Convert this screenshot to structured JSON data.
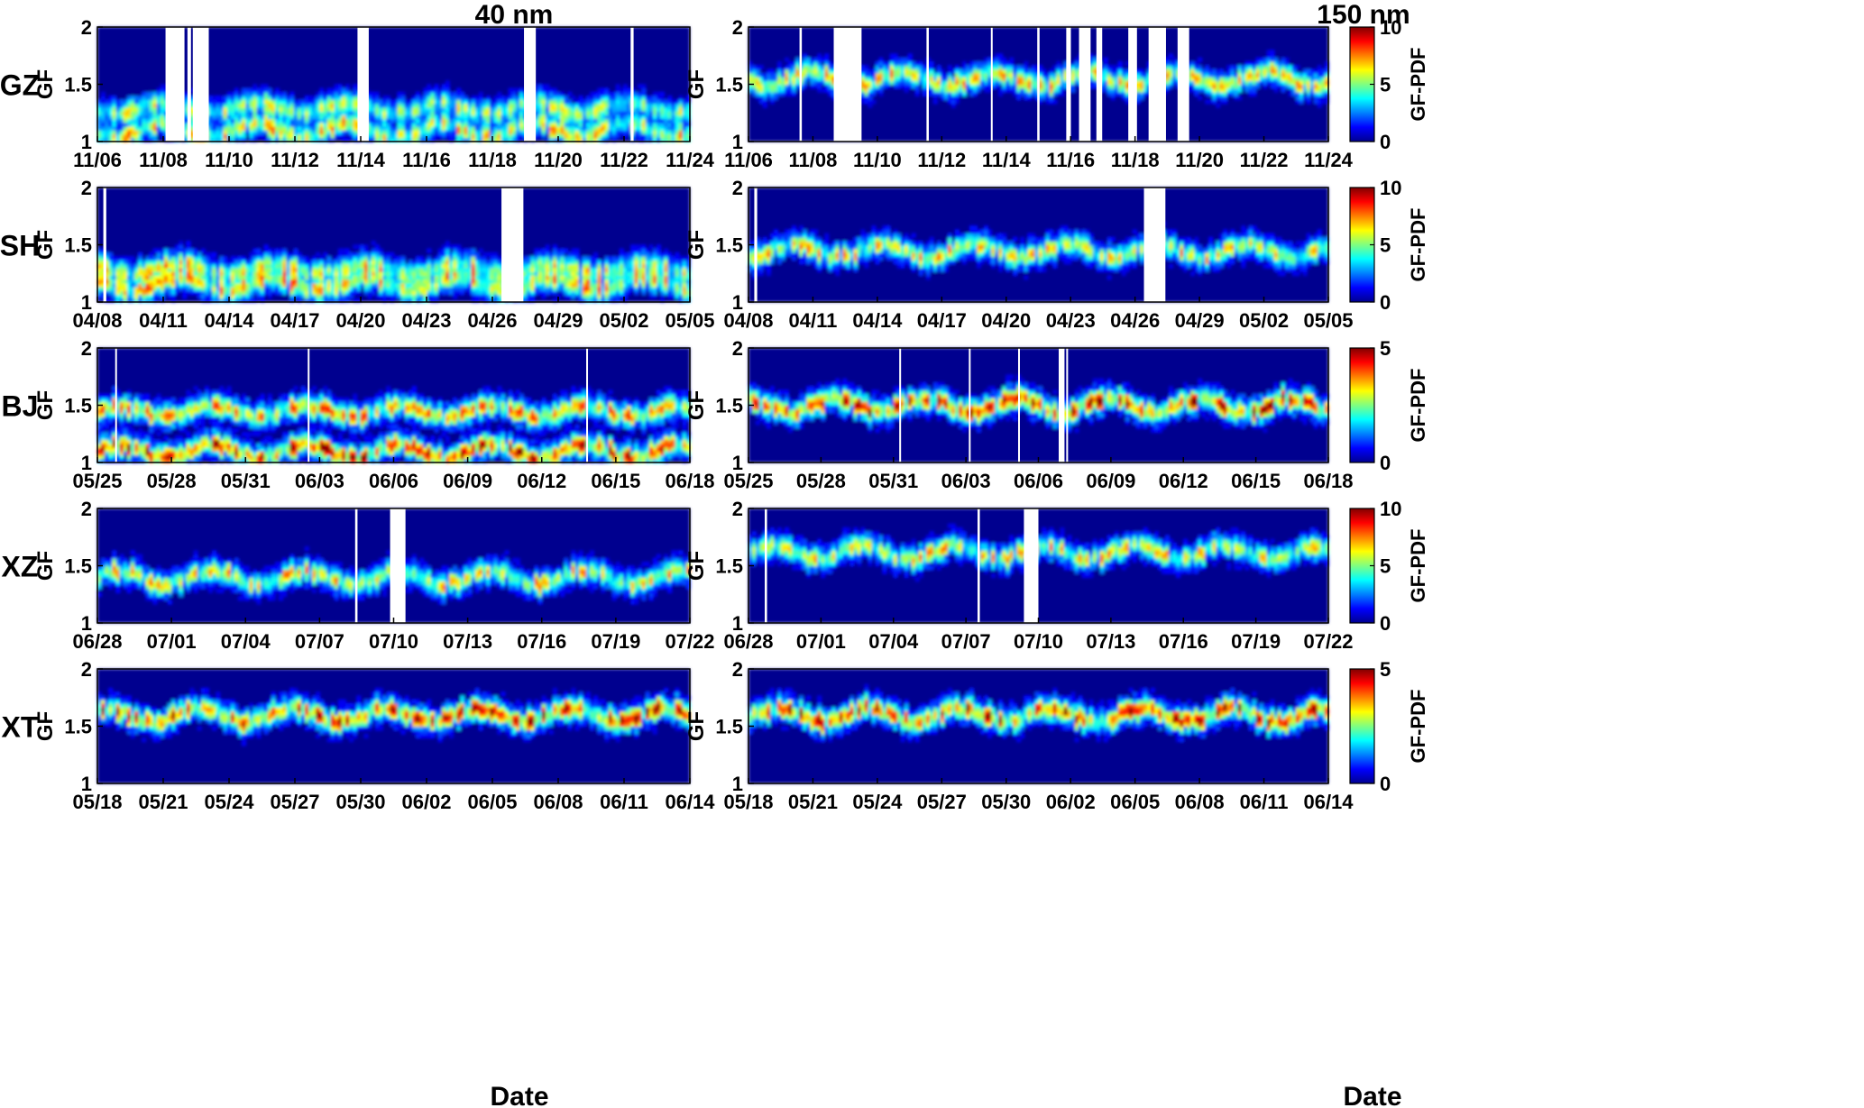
{
  "figure": {
    "column_titles": [
      "40 nm",
      "150 nm"
    ],
    "xlabel": "Date",
    "ylabel": "GF",
    "colorbar_label": "GF-PDF"
  },
  "chart_data": [
    {
      "type": "heatmap",
      "site": "GZ",
      "size": "40 nm",
      "ylabel": "GF",
      "ylim": [
        1,
        2
      ],
      "yticks": [
        "1",
        "1.5",
        "2"
      ],
      "xticks": [
        "11/06",
        "11/08",
        "11/10",
        "11/12",
        "11/14",
        "11/16",
        "11/18",
        "11/20",
        "11/22",
        "11/24"
      ],
      "colorbar": {
        "label": "GF-PDF",
        "range": [
          0,
          10
        ],
        "ticks": [
          "0",
          "5",
          "10"
        ]
      },
      "modes": [
        1.1,
        1.3
      ],
      "gaps": [
        [
          0.115,
          0.143
        ],
        [
          0.14,
          0.147
        ],
        [
          0.152,
          0.158
        ],
        [
          0.161,
          0.188
        ],
        [
          0.439,
          0.458
        ],
        [
          0.72,
          0.74
        ],
        [
          0.9,
          0.905
        ]
      ]
    },
    {
      "type": "heatmap",
      "site": "GZ",
      "size": "150 nm",
      "ylabel": "GF",
      "ylim": [
        1,
        2
      ],
      "yticks": [
        "1",
        "1.5",
        "2"
      ],
      "xticks": [
        "11/06",
        "11/08",
        "11/10",
        "11/12",
        "11/14",
        "11/16",
        "11/18",
        "11/20",
        "11/22",
        "11/24"
      ],
      "colorbar": {
        "label": "GF-PDF",
        "range": [
          0,
          10
        ],
        "ticks": [
          "0",
          "5",
          "10"
        ]
      },
      "modes": [
        1.55
      ],
      "gaps": [
        [
          0.088,
          0.092
        ],
        [
          0.147,
          0.195
        ],
        [
          0.307,
          0.311
        ],
        [
          0.418,
          0.421
        ],
        [
          0.498,
          0.502
        ],
        [
          0.548,
          0.556
        ],
        [
          0.57,
          0.59
        ],
        [
          0.6,
          0.61
        ],
        [
          0.655,
          0.67
        ],
        [
          0.69,
          0.72
        ],
        [
          0.74,
          0.76
        ]
      ]
    },
    {
      "type": "heatmap",
      "site": "SH",
      "size": "40 nm",
      "ylabel": "GF",
      "ylim": [
        1,
        2
      ],
      "yticks": [
        "1",
        "1.5",
        "2"
      ],
      "xticks": [
        "04/08",
        "04/11",
        "04/14",
        "04/17",
        "04/20",
        "04/23",
        "04/26",
        "04/29",
        "05/02",
        "05/05"
      ],
      "colorbar": {
        "label": "GF-PDF",
        "range": [
          0,
          10
        ],
        "ticks": [
          "0",
          "5",
          "10"
        ]
      },
      "modes": [
        1.15,
        1.3
      ],
      "gaps": [
        [
          0.01,
          0.015
        ],
        [
          0.682,
          0.719
        ]
      ]
    },
    {
      "type": "heatmap",
      "site": "SH",
      "size": "150 nm",
      "ylabel": "GF",
      "ylim": [
        1,
        2
      ],
      "yticks": [
        "1",
        "1.5",
        "2"
      ],
      "xticks": [
        "04/08",
        "04/11",
        "04/14",
        "04/17",
        "04/20",
        "04/23",
        "04/26",
        "04/29",
        "05/02",
        "05/05"
      ],
      "colorbar": {
        "label": "GF-PDF",
        "range": [
          0,
          10
        ],
        "ticks": [
          "0",
          "5",
          "10"
        ]
      },
      "modes": [
        1.45
      ],
      "gaps": [
        [
          0.01,
          0.015
        ],
        [
          0.682,
          0.719
        ]
      ]
    },
    {
      "type": "heatmap",
      "site": "BJ",
      "size": "40 nm",
      "ylabel": "GF",
      "ylim": [
        1,
        2
      ],
      "yticks": [
        "1",
        "1.5",
        "2"
      ],
      "xticks": [
        "05/25",
        "05/28",
        "05/31",
        "06/03",
        "06/06",
        "06/09",
        "06/12",
        "06/15",
        "06/18"
      ],
      "colorbar": {
        "label": "GF-PDF",
        "range": [
          0,
          5
        ],
        "ticks": [
          "0",
          "5"
        ]
      },
      "modes": [
        1.1,
        1.45
      ],
      "gaps": [
        [
          0.03,
          0.033
        ],
        [
          0.355,
          0.358
        ],
        [
          0.825,
          0.828
        ]
      ]
    },
    {
      "type": "heatmap",
      "site": "BJ",
      "size": "150 nm",
      "ylabel": "GF",
      "ylim": [
        1,
        2
      ],
      "yticks": [
        "1",
        "1.5",
        "2"
      ],
      "xticks": [
        "05/25",
        "05/28",
        "05/31",
        "06/03",
        "06/06",
        "06/09",
        "06/12",
        "06/15",
        "06/18"
      ],
      "colorbar": {
        "label": "GF-PDF",
        "range": [
          0,
          5
        ],
        "ticks": [
          "0",
          "5"
        ]
      },
      "modes": [
        1.5
      ],
      "gaps": [
        [
          0.26,
          0.263
        ],
        [
          0.38,
          0.383
        ],
        [
          0.465,
          0.468
        ],
        [
          0.535,
          0.545
        ],
        [
          0.548,
          0.551
        ]
      ]
    },
    {
      "type": "heatmap",
      "site": "XZ",
      "size": "40 nm",
      "ylabel": "GF",
      "ylim": [
        1,
        2
      ],
      "yticks": [
        "1",
        "1.5",
        "2"
      ],
      "xticks": [
        "06/28",
        "07/01",
        "07/04",
        "07/07",
        "07/10",
        "07/13",
        "07/16",
        "07/19",
        "07/22"
      ],
      "colorbar": {
        "label": "GF-PDF",
        "range": [
          0,
          10
        ],
        "ticks": [
          "0",
          "5",
          "10"
        ]
      },
      "modes": [
        1.4
      ],
      "gaps": [
        [
          0.435,
          0.439
        ],
        [
          0.494,
          0.52
        ]
      ]
    },
    {
      "type": "heatmap",
      "site": "XZ",
      "size": "150 nm",
      "ylabel": "GF",
      "ylim": [
        1,
        2
      ],
      "yticks": [
        "1",
        "1.5",
        "2"
      ],
      "xticks": [
        "06/28",
        "07/01",
        "07/04",
        "07/07",
        "07/10",
        "07/13",
        "07/16",
        "07/19",
        "07/22"
      ],
      "colorbar": {
        "label": "GF-PDF",
        "range": [
          0,
          10
        ],
        "ticks": [
          "0",
          "5",
          "10"
        ]
      },
      "modes": [
        1.62
      ],
      "gaps": [
        [
          0.028,
          0.032
        ],
        [
          0.395,
          0.399
        ],
        [
          0.475,
          0.5
        ]
      ]
    },
    {
      "type": "heatmap",
      "site": "XT",
      "size": "40 nm",
      "ylabel": "GF",
      "ylim": [
        1,
        2
      ],
      "yticks": [
        "1",
        "1.5",
        "2"
      ],
      "xticks": [
        "05/18",
        "05/21",
        "05/24",
        "05/27",
        "05/30",
        "06/02",
        "06/05",
        "06/08",
        "06/11",
        "06/14"
      ],
      "colorbar": {
        "label": "GF-PDF",
        "range": [
          0,
          5
        ],
        "ticks": [
          "0",
          "5"
        ]
      },
      "modes": [
        1.6
      ],
      "gaps": []
    },
    {
      "type": "heatmap",
      "site": "XT",
      "size": "150 nm",
      "ylabel": "GF",
      "ylim": [
        1,
        2
      ],
      "yticks": [
        "1",
        "1.5",
        "2"
      ],
      "xticks": [
        "05/18",
        "05/21",
        "05/24",
        "05/27",
        "05/30",
        "06/02",
        "06/05",
        "06/08",
        "06/11",
        "06/14"
      ],
      "colorbar": {
        "label": "GF-PDF",
        "range": [
          0,
          5
        ],
        "ticks": [
          "0",
          "5"
        ]
      },
      "modes": [
        1.6
      ],
      "gaps": []
    }
  ]
}
